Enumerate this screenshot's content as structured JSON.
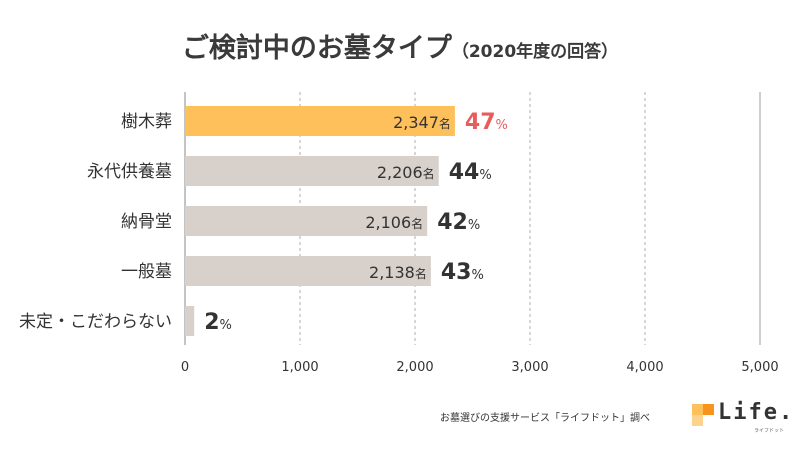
{
  "chart_data": {
    "type": "bar",
    "orientation": "horizontal",
    "title": "ご検討中のお墓タイプ",
    "subtitle": "（2020年度の回答）",
    "categories": [
      "樹木葬",
      "永代供養墓",
      "納骨堂",
      "一般墓",
      "未定・こだわらない"
    ],
    "values": [
      2347,
      2206,
      2106,
      2138,
      80
    ],
    "value_labels": [
      "2,347",
      "2,206",
      "2,106",
      "2,138",
      ""
    ],
    "unit": "名",
    "percents": [
      47,
      44,
      42,
      43,
      2
    ],
    "percent_suffix": "%",
    "highlight_index": 0,
    "xlim": [
      0,
      5000
    ],
    "xticks": [
      0,
      1000,
      2000,
      3000,
      4000,
      5000
    ],
    "xtick_labels": [
      "0",
      "1,000",
      "2,000",
      "3,000",
      "4,000",
      "5,000"
    ],
    "grid": "dashed-vertical",
    "colors": {
      "highlight_bar": "#FDC05A",
      "bar": "#D7D0CB",
      "highlight_pct": "#E85C5C",
      "pct": "#333333",
      "grid": "#b5ada8",
      "axis": "#888888"
    }
  },
  "footer": {
    "source": "お墓選びの支援サービス「ライフドット」調べ"
  },
  "logo": {
    "text": "Life.",
    "sub": "ライフドット",
    "colors": [
      "#FDC05A",
      "#F7941D",
      "#FCD28C"
    ]
  }
}
